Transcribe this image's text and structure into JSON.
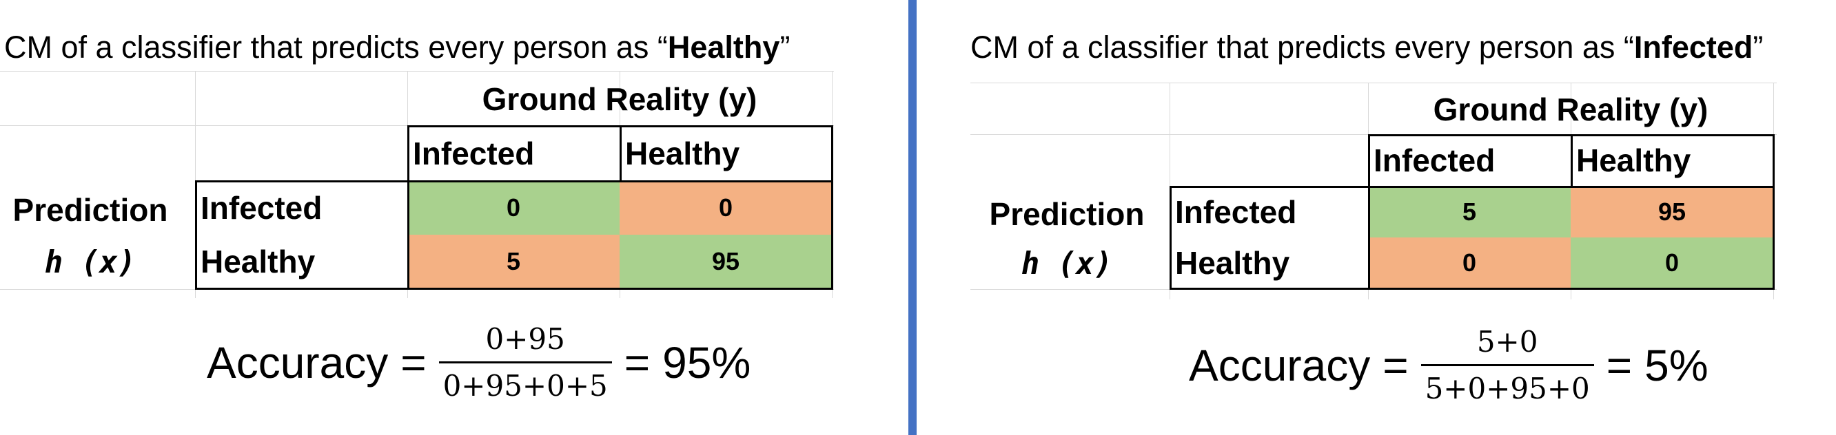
{
  "panels": [
    {
      "title_prefix": "CM of a classifier that predicts every person as “",
      "title_bold": "Healthy",
      "title_suffix": "”",
      "ground_header": "Ground Reality (y)",
      "col_labels": [
        "Infected",
        "Healthy"
      ],
      "row_title": "Prediction",
      "row_subtitle": "h (x)",
      "row_labels": [
        "Infected",
        "Healthy"
      ],
      "cells": [
        [
          "0",
          "0"
        ],
        [
          "5",
          "95"
        ]
      ],
      "cell_colors": [
        [
          "green",
          "orange"
        ],
        [
          "orange",
          "green"
        ]
      ],
      "formula": {
        "word": "Accuracy",
        "numerator": "0+95",
        "denominator": "0+95+0+5",
        "result": "95%"
      }
    },
    {
      "title_prefix": "CM of a classifier that predicts every person as “",
      "title_bold": "Infected",
      "title_suffix": "”",
      "ground_header": "Ground Reality (y)",
      "col_labels": [
        "Infected",
        "Healthy"
      ],
      "row_title": "Prediction",
      "row_subtitle": "h (x)",
      "row_labels": [
        "Infected",
        "Healthy"
      ],
      "cells": [
        [
          "5",
          "95"
        ],
        [
          "0",
          "0"
        ]
      ],
      "cell_colors": [
        [
          "green",
          "orange"
        ],
        [
          "orange",
          "green"
        ]
      ],
      "formula": {
        "word": "Accuracy",
        "numerator": "5+0",
        "denominator": "5+0+95+0",
        "result": "5%"
      }
    }
  ],
  "colors": {
    "green": "#a9d18e",
    "orange": "#f4b183",
    "divider": "#4472c4"
  }
}
